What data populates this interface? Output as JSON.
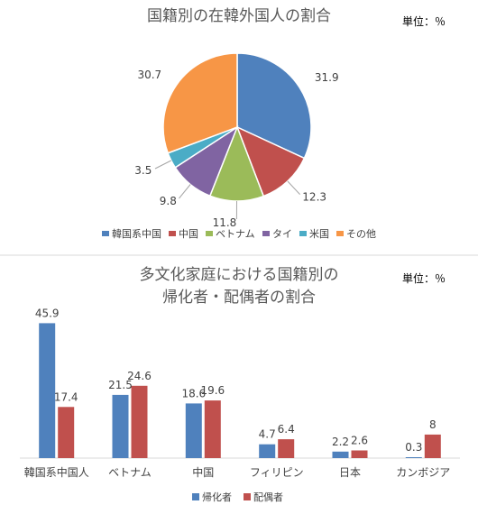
{
  "colors": {
    "blue": "#4f81bd",
    "red": "#c0504d",
    "green": "#9bbb59",
    "purple": "#8064a2",
    "cyan": "#4bacc6",
    "orange": "#f79646",
    "divider": "#d9d9d9",
    "leader": "#a6a6a6"
  },
  "chart_data": [
    {
      "type": "pie",
      "title": "国籍別の在韓外国人の割合",
      "unit_label": "単位：％",
      "slices": [
        {
          "name": "韓国系中国",
          "value": 31.9,
          "color": "#4f81bd"
        },
        {
          "name": "中国",
          "value": 12.3,
          "color": "#c0504d"
        },
        {
          "name": "ベトナム",
          "value": 11.8,
          "color": "#9bbb59"
        },
        {
          "name": "タイ",
          "value": 9.8,
          "color": "#8064a2"
        },
        {
          "name": "米国",
          "value": 3.5,
          "color": "#4bacc6"
        },
        {
          "name": "その他",
          "value": 30.7,
          "color": "#f79646"
        }
      ],
      "legend_position": "bottom"
    },
    {
      "type": "bar",
      "title_lines": [
        "多文化家庭における国籍別の",
        "帰化者・配偶者の割合"
      ],
      "unit_label": "単位：％",
      "categories": [
        "韓国系中国人",
        "ベトナム",
        "中国",
        "フィリピン",
        "日本",
        "カンボジア"
      ],
      "series": [
        {
          "name": "帰化者",
          "color": "#4f81bd",
          "values": [
            45.9,
            21.5,
            18.6,
            4.7,
            2.2,
            0.3
          ]
        },
        {
          "name": "配偶者",
          "color": "#c0504d",
          "values": [
            17.4,
            24.6,
            19.6,
            6.4,
            2.6,
            8
          ]
        }
      ],
      "ylim": [
        0,
        50
      ],
      "grid": false,
      "legend_position": "bottom"
    }
  ]
}
